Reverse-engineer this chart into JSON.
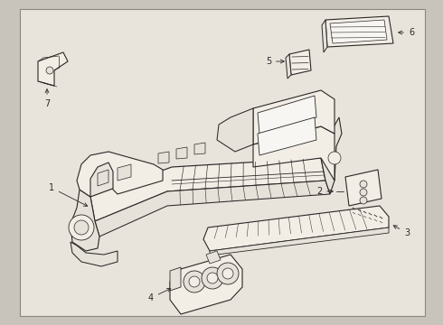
{
  "fig_width": 4.9,
  "fig_height": 3.6,
  "dpi": 100,
  "bg_color": "#c8c4bc",
  "box_bg": "#e8e4dc",
  "box_fill": "#edeae2",
  "line_color": "#2a2828",
  "fill_light": "#f2ede5",
  "fill_mid": "#e6e2da",
  "fill_dark": "#d8d4cc",
  "white_fill": "#f8f6f2"
}
